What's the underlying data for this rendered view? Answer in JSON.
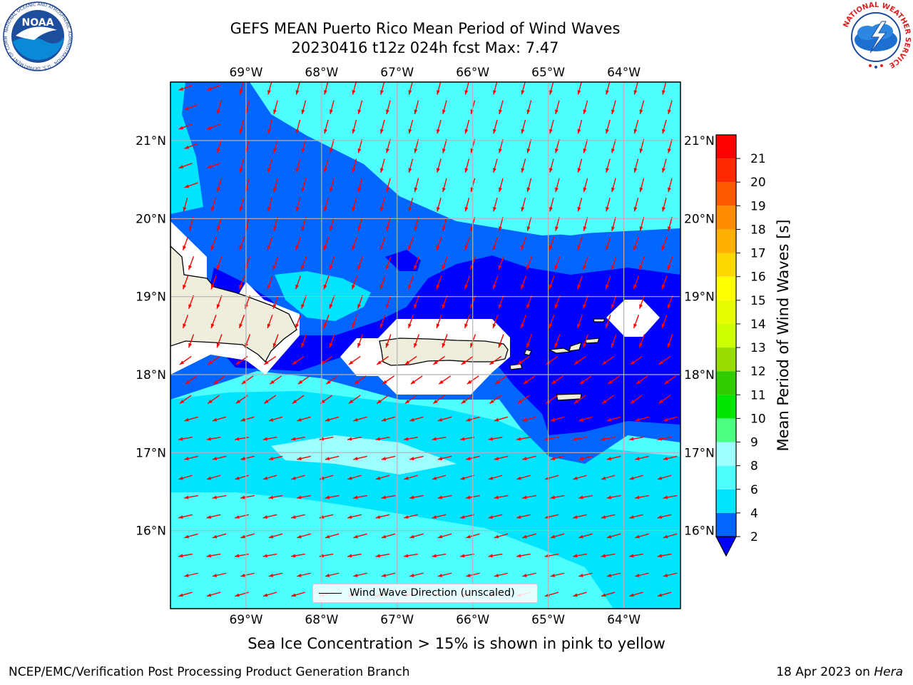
{
  "title": {
    "line1": "GEFS MEAN Puerto Rico Mean Period of Wind Waves",
    "line2": "20230416 t12z 024h fcst   Max: 7.47"
  },
  "logos": {
    "left": "noaa-logo",
    "right": "nws-logo",
    "left_text": "NOAA",
    "left_ring_text": "NATIONAL OCEANIC AND ATMOSPHERIC ADMINISTRATION · U.S. DEPARTMENT OF COMMERCE",
    "right_ring_text": "NATIONAL WEATHER SERVICE"
  },
  "map": {
    "region": "Puerto Rico",
    "projection": "lat-lon",
    "lon_range": [
      -70.0,
      -63.25
    ],
    "lat_range": [
      15.0,
      21.75
    ],
    "lon_ticks": [
      "69°W",
      "68°W",
      "67°W",
      "66°W",
      "65°W",
      "64°W"
    ],
    "lon_tick_values": [
      -69,
      -68,
      -67,
      -66,
      -65,
      -64
    ],
    "lat_ticks": [
      "21°N",
      "20°N",
      "19°N",
      "18°N",
      "17°N",
      "16°N"
    ],
    "lat_tick_values": [
      21,
      20,
      19,
      18,
      17,
      16
    ],
    "grid": true,
    "land_color": "#efeddc",
    "arrow_color": "#ff0000",
    "arrow_direction": "from east-northeast in the south, from north-northeast in the north"
  },
  "legend": {
    "label": "Wind Wave Direction (unscaled)",
    "placement": "bottom-center"
  },
  "colorbar": {
    "label": "Mean Period of Wind Waves [s]",
    "ticks": [
      "2",
      "4",
      "6",
      "8",
      "9",
      "10",
      "11",
      "12",
      "13",
      "14",
      "15",
      "16",
      "17",
      "18",
      "19",
      "20",
      "21"
    ],
    "levels": [
      2,
      4,
      6,
      8,
      9,
      10,
      11,
      12,
      13,
      14,
      15,
      16,
      17,
      18,
      19,
      20,
      21
    ],
    "colors": [
      "#0066ff",
      "#00e4ff",
      "#4dffff",
      "#9dffff",
      "#4dff80",
      "#00e600",
      "#33cc00",
      "#99dd00",
      "#ccff00",
      "#e6ff00",
      "#ffff00",
      "#ffd700",
      "#ffb000",
      "#ff8c00",
      "#ff5a00",
      "#ff2a00",
      "#ff0000"
    ],
    "under_color": "#0000ff",
    "extend": "min"
  },
  "notes": {
    "sea_ice": "Sea Ice Concentration > 15% is shown in pink to yellow",
    "credit_left": "NCEP/EMC/Verification Post Processing Product Generation Branch",
    "credit_date": "18 Apr 2023 on ",
    "credit_host": "Hera"
  }
}
